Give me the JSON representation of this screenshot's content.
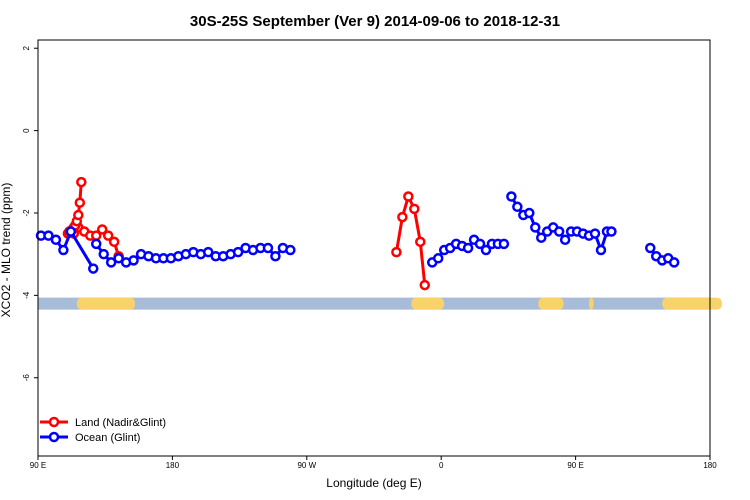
{
  "chart_data": {
    "type": "line",
    "title": "30S-25S September (Ver 9)   2014-09-06 to 2018-12-31",
    "xlabel": "Longitude (deg E)",
    "ylabel": "XCO2 - MLO trend (ppm)",
    "x_ticks": [
      {
        "value": 90,
        "label": "90 E"
      },
      {
        "value": 180,
        "label": "180"
      },
      {
        "value": 270,
        "label": "90 W"
      },
      {
        "value": 360,
        "label": "0"
      },
      {
        "value": 450,
        "label": "90 E"
      },
      {
        "value": 540,
        "label": "180"
      }
    ],
    "y_ticks": [
      2,
      0,
      -2,
      -4,
      -6
    ],
    "xlim": [
      90,
      540
    ],
    "ylim": [
      -7.9,
      2.2
    ],
    "grid": false,
    "legend_position": "bottom-left",
    "band": {
      "y": -4.2,
      "base_color": "#a7bcd9",
      "land_color": "#f9d36a",
      "land_segments": [
        [
          116,
          155
        ],
        [
          340,
          362
        ],
        [
          425,
          442
        ],
        [
          459,
          462
        ],
        [
          508,
          548
        ]
      ]
    },
    "series": [
      {
        "name": "Land (Nadir&Glint)",
        "color": "#ff0000",
        "segments": [
          [
            [
              114,
              -2.5
            ],
            [
              117,
              -2.35
            ],
            [
              121,
              -2.45
            ],
            [
              125,
              -2.55
            ],
            [
              129,
              -2.55
            ],
            [
              133,
              -2.4
            ],
            [
              137,
              -2.55
            ],
            [
              141,
              -2.7
            ],
            [
              144,
              -3.05
            ]
          ],
          [
            [
              330,
              -2.95
            ],
            [
              334,
              -2.1
            ],
            [
              338,
              -1.6
            ],
            [
              342,
              -1.9
            ],
            [
              346,
              -2.7
            ],
            [
              349,
              -3.75
            ]
          ],
          [
            [
              110,
              -2.5
            ],
            [
              111,
              -2.45
            ],
            [
              112,
              -2.45
            ],
            [
              113,
              -2.4
            ],
            [
              114,
              -2.35
            ],
            [
              115,
              -2.3
            ],
            [
              116,
              -2.2
            ],
            [
              117,
              -2.05
            ],
            [
              118,
              -1.75
            ],
            [
              119,
              -1.25
            ]
          ]
        ]
      },
      {
        "name": "Ocean (Glint)",
        "color": "#0000ff",
        "segments": [
          [
            [
              92,
              -2.55
            ],
            [
              97,
              -2.55
            ],
            [
              102,
              -2.65
            ],
            [
              107,
              -2.9
            ],
            [
              112,
              -2.45
            ],
            [
              127,
              -3.35
            ]
          ],
          [
            [
              129,
              -2.75
            ],
            [
              134,
              -3.0
            ],
            [
              139,
              -3.2
            ],
            [
              144,
              -3.1
            ],
            [
              149,
              -3.2
            ],
            [
              154,
              -3.15
            ],
            [
              159,
              -3.0
            ],
            [
              164,
              -3.05
            ],
            [
              169,
              -3.1
            ],
            [
              174,
              -3.1
            ],
            [
              179,
              -3.1
            ],
            [
              184,
              -3.05
            ],
            [
              189,
              -3.0
            ],
            [
              194,
              -2.95
            ],
            [
              199,
              -3.0
            ],
            [
              204,
              -2.95
            ],
            [
              209,
              -3.05
            ],
            [
              214,
              -3.05
            ],
            [
              219,
              -3.0
            ],
            [
              224,
              -2.95
            ],
            [
              229,
              -2.85
            ],
            [
              234,
              -2.9
            ],
            [
              239,
              -2.85
            ],
            [
              244,
              -2.85
            ],
            [
              249,
              -3.05
            ],
            [
              254,
              -2.85
            ],
            [
              259,
              -2.9
            ]
          ],
          [
            [
              354,
              -3.2
            ],
            [
              358,
              -3.1
            ],
            [
              362,
              -2.9
            ],
            [
              366,
              -2.85
            ],
            [
              370,
              -2.75
            ],
            [
              374,
              -2.8
            ],
            [
              378,
              -2.85
            ],
            [
              382,
              -2.65
            ],
            [
              386,
              -2.75
            ],
            [
              390,
              -2.9
            ],
            [
              394,
              -2.75
            ],
            [
              398,
              -2.75
            ],
            [
              402,
              -2.75
            ]
          ],
          [
            [
              407,
              -1.6
            ],
            [
              411,
              -1.85
            ],
            [
              415,
              -2.05
            ],
            [
              419,
              -2.0
            ],
            [
              423,
              -2.35
            ],
            [
              427,
              -2.6
            ],
            [
              431,
              -2.45
            ],
            [
              435,
              -2.35
            ],
            [
              439,
              -2.45
            ],
            [
              443,
              -2.65
            ],
            [
              447,
              -2.45
            ],
            [
              451,
              -2.45
            ],
            [
              455,
              -2.5
            ],
            [
              459,
              -2.55
            ],
            [
              463,
              -2.5
            ],
            [
              467,
              -2.9
            ],
            [
              471,
              -2.45
            ],
            [
              474,
              -2.45
            ]
          ],
          [
            [
              500,
              -2.85
            ],
            [
              504,
              -3.05
            ],
            [
              508,
              -3.15
            ],
            [
              512,
              -3.1
            ],
            [
              516,
              -3.2
            ]
          ]
        ]
      }
    ]
  }
}
